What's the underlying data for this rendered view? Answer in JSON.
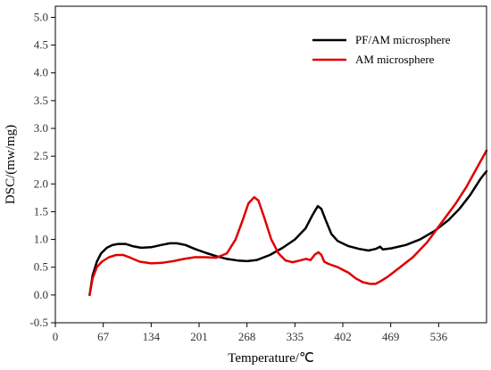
{
  "chart_data": {
    "type": "line",
    "title": "",
    "xlabel": "Temperature/℃",
    "ylabel": "DSC/(mw/mg)",
    "xlim": [
      0,
      603
    ],
    "ylim": [
      -0.5,
      5.2
    ],
    "xticks": [
      0,
      67,
      134,
      201,
      268,
      335,
      402,
      469,
      536
    ],
    "xtick_labels": [
      "0",
      "67",
      "134",
      "201",
      "268",
      "335",
      "402",
      "469",
      "536"
    ],
    "yticks": [
      -0.5,
      0.0,
      0.5,
      1.0,
      1.5,
      2.0,
      2.5,
      3.0,
      3.5,
      4.0,
      4.5,
      5.0
    ],
    "ytick_labels": [
      "-0.5",
      "0.0",
      "0.5",
      "1.0",
      "1.5",
      "2.0",
      "2.5",
      "3.0",
      "3.5",
      "4.0",
      "4.5",
      "5.0"
    ],
    "grid": false,
    "legend_position": "top-right",
    "series": [
      {
        "name": "PF/AM microsphere",
        "color": "#000000",
        "points": [
          [
            48,
            0.0
          ],
          [
            52,
            0.35
          ],
          [
            58,
            0.6
          ],
          [
            64,
            0.75
          ],
          [
            72,
            0.85
          ],
          [
            80,
            0.9
          ],
          [
            88,
            0.92
          ],
          [
            98,
            0.92
          ],
          [
            108,
            0.88
          ],
          [
            120,
            0.85
          ],
          [
            134,
            0.86
          ],
          [
            148,
            0.9
          ],
          [
            160,
            0.93
          ],
          [
            170,
            0.93
          ],
          [
            182,
            0.9
          ],
          [
            195,
            0.83
          ],
          [
            210,
            0.76
          ],
          [
            225,
            0.7
          ],
          [
            240,
            0.65
          ],
          [
            255,
            0.62
          ],
          [
            268,
            0.61
          ],
          [
            282,
            0.63
          ],
          [
            300,
            0.72
          ],
          [
            318,
            0.85
          ],
          [
            335,
            1.0
          ],
          [
            350,
            1.2
          ],
          [
            360,
            1.45
          ],
          [
            367,
            1.6
          ],
          [
            372,
            1.55
          ],
          [
            378,
            1.35
          ],
          [
            386,
            1.1
          ],
          [
            395,
            0.97
          ],
          [
            410,
            0.88
          ],
          [
            425,
            0.83
          ],
          [
            438,
            0.8
          ],
          [
            448,
            0.83
          ],
          [
            454,
            0.87
          ],
          [
            458,
            0.82
          ],
          [
            470,
            0.84
          ],
          [
            490,
            0.9
          ],
          [
            510,
            1.0
          ],
          [
            530,
            1.15
          ],
          [
            550,
            1.35
          ],
          [
            565,
            1.55
          ],
          [
            580,
            1.8
          ],
          [
            595,
            2.1
          ],
          [
            603,
            2.23
          ]
        ]
      },
      {
        "name": "AM microsphere",
        "color": "#e00000",
        "points": [
          [
            48,
            0.0
          ],
          [
            52,
            0.3
          ],
          [
            58,
            0.5
          ],
          [
            65,
            0.6
          ],
          [
            75,
            0.68
          ],
          [
            85,
            0.72
          ],
          [
            95,
            0.72
          ],
          [
            105,
            0.67
          ],
          [
            118,
            0.6
          ],
          [
            134,
            0.57
          ],
          [
            150,
            0.58
          ],
          [
            165,
            0.61
          ],
          [
            180,
            0.65
          ],
          [
            195,
            0.68
          ],
          [
            210,
            0.68
          ],
          [
            225,
            0.67
          ],
          [
            240,
            0.75
          ],
          [
            252,
            1.0
          ],
          [
            262,
            1.35
          ],
          [
            270,
            1.65
          ],
          [
            278,
            1.76
          ],
          [
            284,
            1.7
          ],
          [
            292,
            1.4
          ],
          [
            302,
            1.0
          ],
          [
            312,
            0.75
          ],
          [
            322,
            0.62
          ],
          [
            332,
            0.59
          ],
          [
            342,
            0.62
          ],
          [
            350,
            0.65
          ],
          [
            357,
            0.63
          ],
          [
            363,
            0.73
          ],
          [
            368,
            0.77
          ],
          [
            372,
            0.72
          ],
          [
            376,
            0.6
          ],
          [
            382,
            0.56
          ],
          [
            395,
            0.5
          ],
          [
            410,
            0.4
          ],
          [
            420,
            0.3
          ],
          [
            430,
            0.23
          ],
          [
            440,
            0.2
          ],
          [
            448,
            0.2
          ],
          [
            455,
            0.25
          ],
          [
            465,
            0.33
          ],
          [
            480,
            0.48
          ],
          [
            500,
            0.68
          ],
          [
            520,
            0.95
          ],
          [
            540,
            1.3
          ],
          [
            560,
            1.65
          ],
          [
            575,
            1.95
          ],
          [
            590,
            2.3
          ],
          [
            603,
            2.6
          ]
        ]
      }
    ]
  }
}
